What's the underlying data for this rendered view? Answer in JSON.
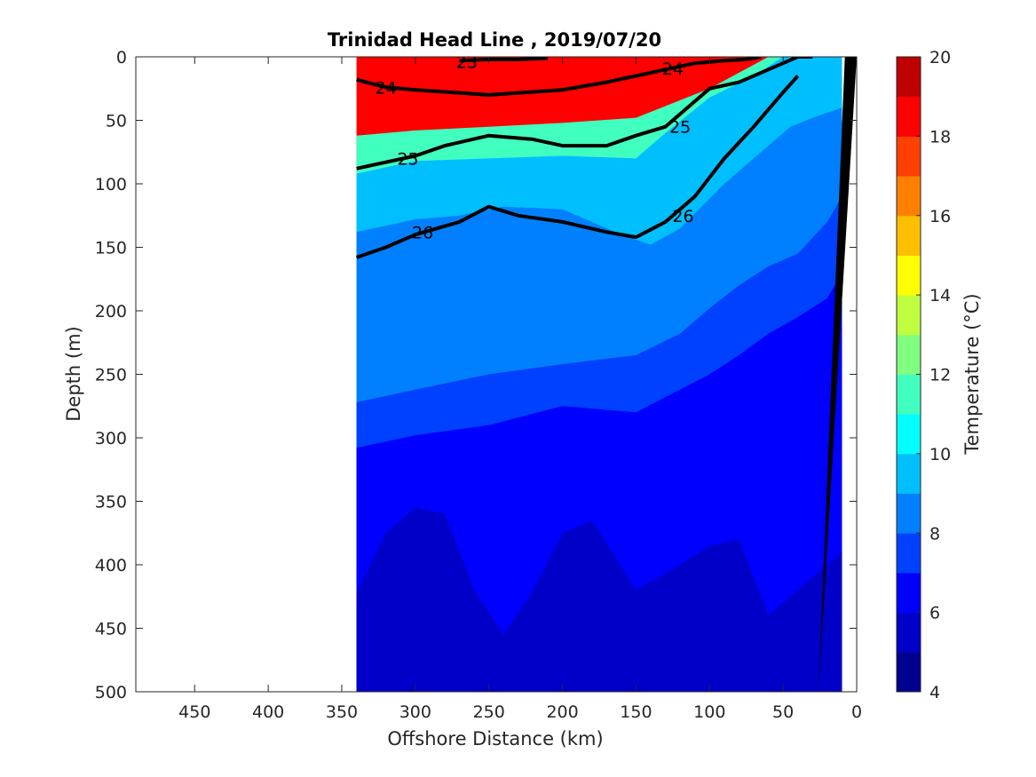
{
  "chart_data": {
    "type": "heatmap",
    "title": "Trinidad Head Line , 2019/07/20",
    "xlabel": "Offshore Distance (km)",
    "ylabel": "Depth (m)",
    "xlim": [
      490,
      0
    ],
    "ylim": [
      500,
      0
    ],
    "x_reversed": true,
    "y_reversed": true,
    "x_ticks": [
      450,
      400,
      350,
      300,
      250,
      200,
      150,
      100,
      50,
      0
    ],
    "y_ticks": [
      0,
      50,
      100,
      150,
      200,
      250,
      300,
      350,
      400,
      450,
      500
    ],
    "colorbar": {
      "label": "Temperature (°C)",
      "range": [
        4,
        20
      ],
      "ticks": [
        4,
        6,
        8,
        10,
        12,
        14,
        16,
        18,
        20
      ],
      "levels": [
        4,
        5,
        6,
        7,
        8,
        9,
        10,
        11,
        12,
        13,
        14,
        15,
        16,
        17,
        18,
        19,
        20
      ],
      "colors": [
        "#00008f",
        "#0000c8",
        "#0000ff",
        "#0040ff",
        "#0080ff",
        "#00bfff",
        "#00ffff",
        "#40ffbf",
        "#80ff80",
        "#bfff40",
        "#ffff00",
        "#ffbf00",
        "#ff8000",
        "#ff4000",
        "#ff0000",
        "#bf0000"
      ]
    },
    "data_extent_km": [
      340,
      10
    ],
    "temperature_layers": [
      {
        "t": 12,
        "x": [
          340,
          300,
          250,
          200,
          150,
          100,
          60
        ],
        "depth": [
          62,
          58,
          55,
          52,
          48,
          25,
          0
        ]
      },
      {
        "t": 10,
        "x": [
          340,
          300,
          250,
          200,
          150,
          130,
          100,
          70,
          50
        ],
        "depth": [
          92,
          82,
          80,
          78,
          80,
          60,
          32,
          15,
          0
        ]
      },
      {
        "t": 9,
        "x": [
          340,
          300,
          270,
          240,
          200,
          160,
          140,
          120,
          90,
          60,
          45,
          30,
          10
        ],
        "depth": [
          138,
          128,
          125,
          118,
          120,
          140,
          148,
          135,
          100,
          70,
          55,
          48,
          40
        ]
      },
      {
        "t": 8,
        "x": [
          340,
          300,
          250,
          200,
          150,
          120,
          100,
          80,
          60,
          40,
          20,
          10
        ],
        "depth": [
          272,
          262,
          250,
          242,
          235,
          218,
          198,
          180,
          165,
          155,
          130,
          110
        ]
      },
      {
        "t": 7,
        "x": [
          340,
          300,
          250,
          200,
          150,
          120,
          100,
          80,
          60,
          40,
          20,
          10
        ],
        "depth": [
          308,
          298,
          290,
          275,
          280,
          262,
          250,
          235,
          218,
          205,
          190,
          170
        ]
      },
      {
        "t": 6,
        "x": [
          340,
          320,
          300,
          280,
          260,
          240,
          220,
          200,
          180,
          150,
          120,
          100,
          80,
          60,
          40,
          20,
          10
        ],
        "depth": [
          422,
          375,
          355,
          360,
          420,
          455,
          420,
          375,
          365,
          420,
          400,
          385,
          380,
          440,
          420,
          400,
          390
        ]
      }
    ],
    "isopycnals": [
      {
        "sigma": 23,
        "x": [
          270,
          250,
          230,
          210
        ],
        "depth": [
          3,
          2,
          2,
          1
        ]
      },
      {
        "sigma": 24,
        "x": [
          340,
          320,
          300,
          250,
          200,
          170,
          150,
          130,
          110,
          90,
          75,
          65
        ],
        "depth": [
          18,
          24,
          26,
          30,
          26,
          20,
          15,
          10,
          5,
          3,
          2,
          0
        ]
      },
      {
        "sigma": 25,
        "x": [
          340,
          300,
          280,
          250,
          220,
          200,
          170,
          150,
          130,
          115,
          100,
          80,
          60,
          40,
          30
        ],
        "depth": [
          88,
          78,
          70,
          62,
          65,
          70,
          70,
          62,
          55,
          40,
          25,
          20,
          10,
          0,
          0
        ]
      },
      {
        "sigma": 26,
        "x": [
          340,
          320,
          300,
          270,
          250,
          230,
          200,
          170,
          150,
          130,
          110,
          90,
          70,
          50,
          40
        ],
        "depth": [
          158,
          150,
          140,
          130,
          118,
          125,
          130,
          138,
          142,
          130,
          110,
          80,
          55,
          28,
          15
        ]
      }
    ],
    "isopycnal_labels": [
      {
        "text": "23",
        "x": 265,
        "depth": 4
      },
      {
        "text": "24",
        "x": 320,
        "depth": 24
      },
      {
        "text": "24",
        "x": 125,
        "depth": 9
      },
      {
        "text": "25",
        "x": 305,
        "depth": 80
      },
      {
        "text": "25",
        "x": 120,
        "depth": 55
      },
      {
        "text": "26",
        "x": 295,
        "depth": 138
      },
      {
        "text": "26",
        "x": 118,
        "depth": 125
      }
    ],
    "bathymetry": {
      "x": [
        0,
        26,
        8
      ],
      "depth": [
        0,
        500,
        0
      ],
      "color": "#000000"
    }
  }
}
